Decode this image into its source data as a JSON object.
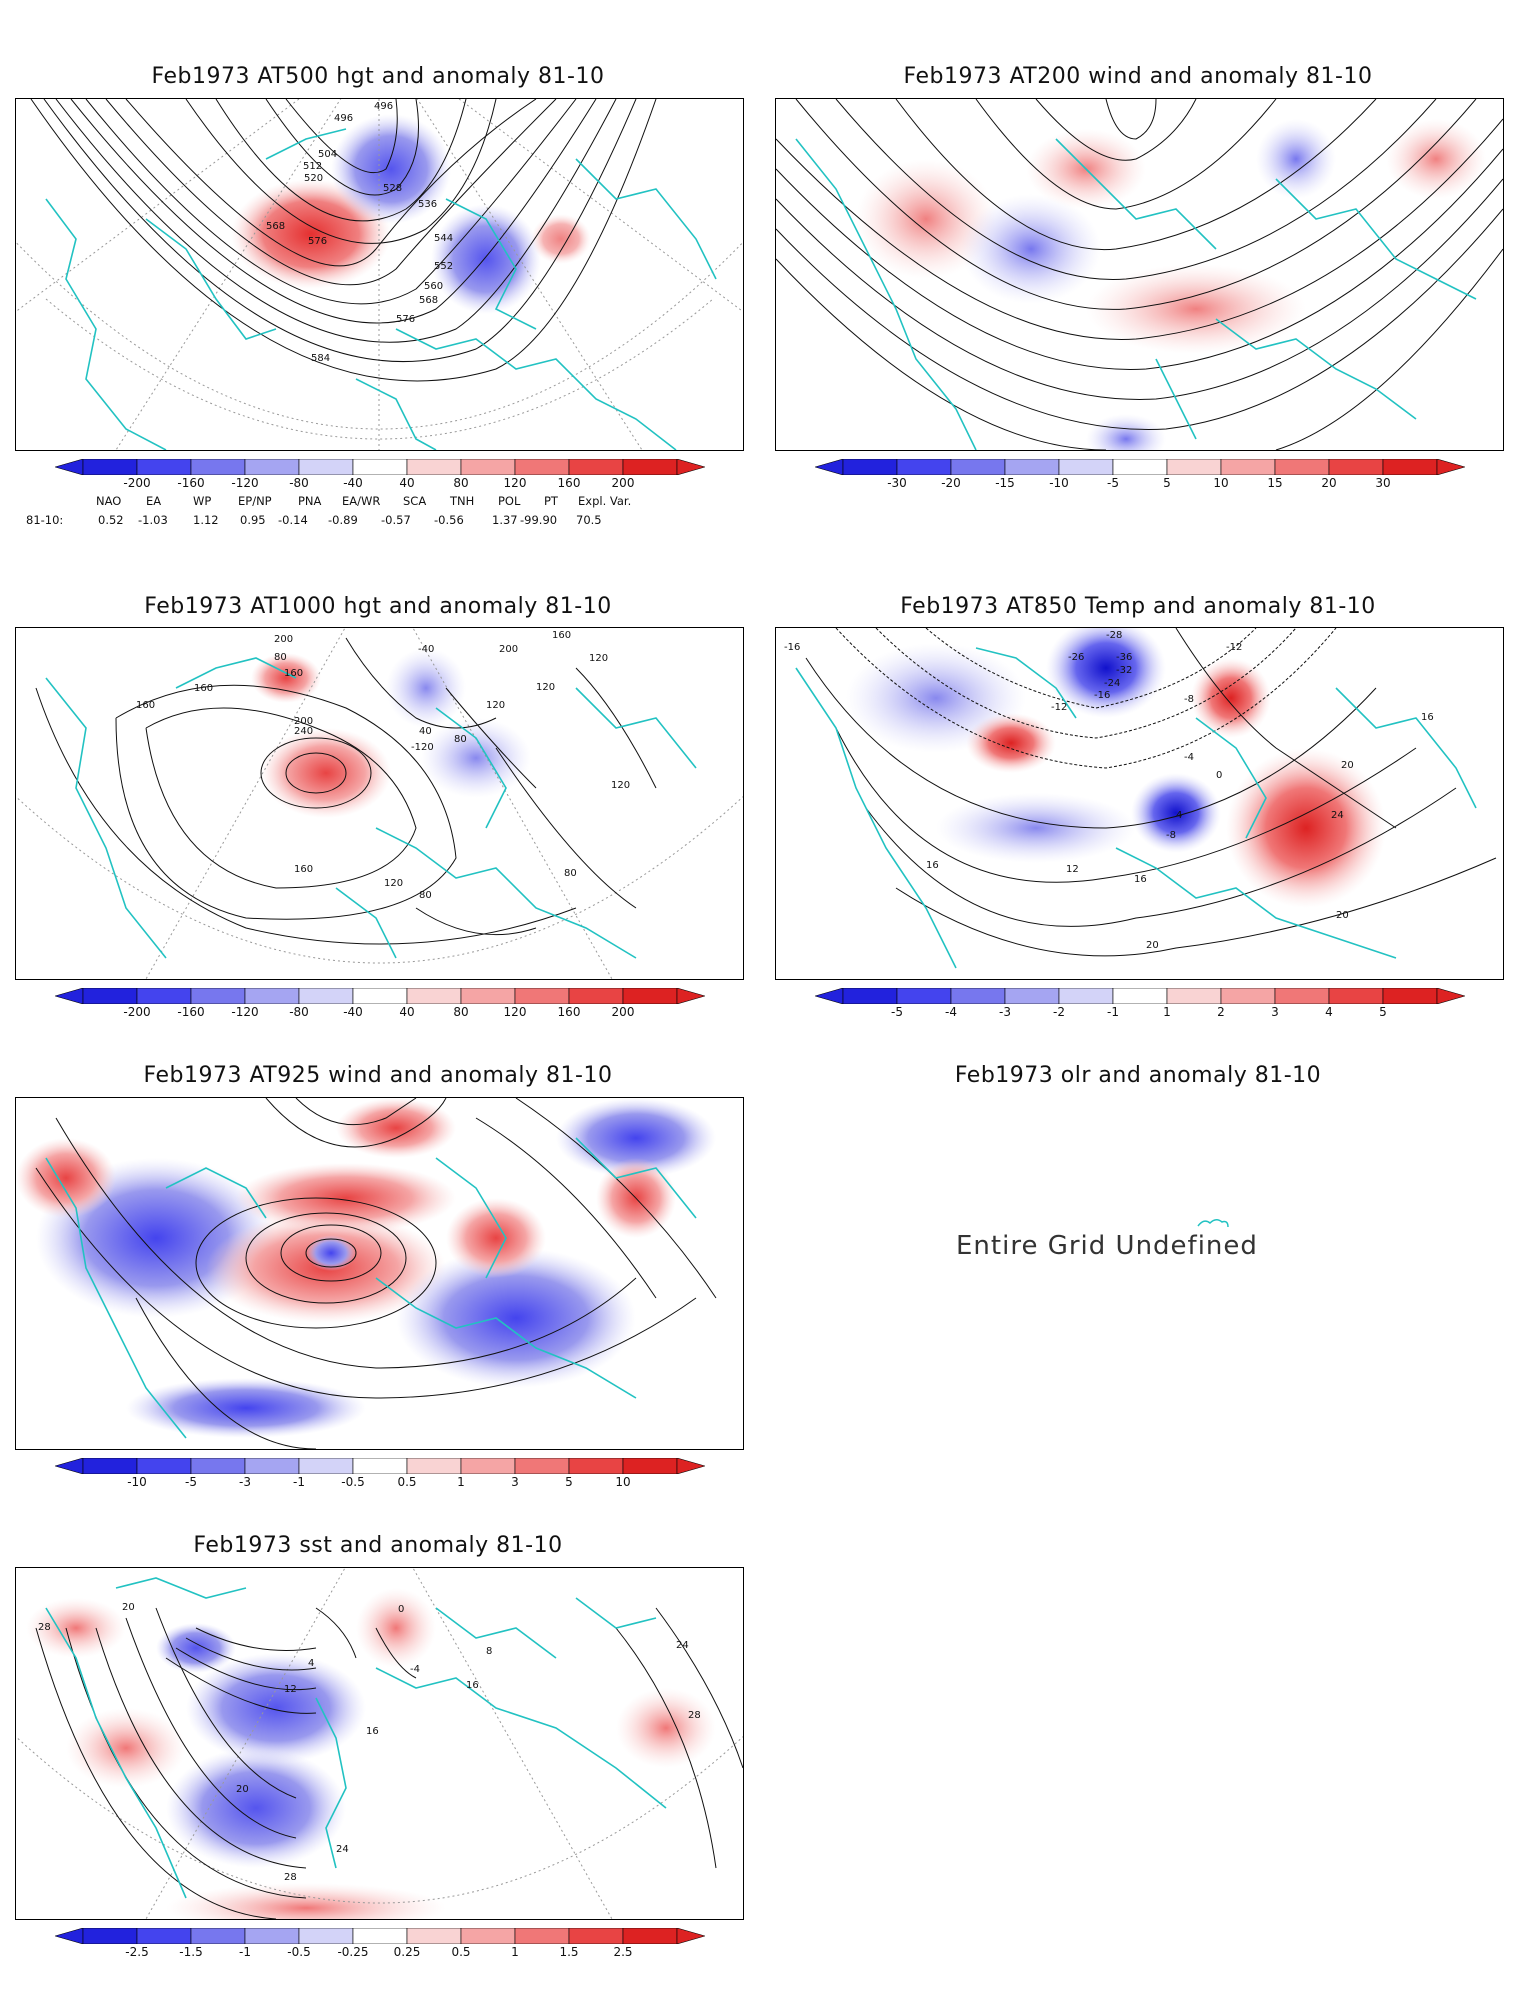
{
  "panels": {
    "p500": {
      "title": "Feb1973 AT500 hgt and anomaly 81-10",
      "contour_labels": [
        "496",
        "496",
        "504",
        "512",
        "520",
        "528",
        "536",
        "544",
        "552",
        "560",
        "568",
        "568",
        "576",
        "576",
        "584"
      ]
    },
    "p200": {
      "title": "Feb1973 AT200 wind and anomaly 81-10"
    },
    "p1000": {
      "title": "Feb1973 AT1000 hgt and anomaly 81-10",
      "contour_labels": [
        "200",
        "80",
        "160",
        "-40",
        "200",
        "160",
        "120",
        "160",
        "160",
        "120",
        "200",
        "240",
        "40",
        "-120",
        "80",
        "160",
        "120",
        "120",
        "80",
        "80",
        "120"
      ]
    },
    "p850": {
      "title": "Feb1973 AT850 Temp and anomaly 81-10",
      "contour_labels": [
        "-16",
        "-28",
        "-26",
        "-36",
        "-32",
        "-24",
        "-16",
        "-12",
        "-12",
        "-8",
        "-4",
        "0",
        "4",
        "-8",
        "16",
        "20",
        "24",
        "16",
        "12",
        "16",
        "20",
        "20"
      ]
    },
    "p925": {
      "title": "Feb1973 AT925 wind and anomaly 81-10"
    },
    "polr": {
      "title": "Feb1973 olr and anomaly 81-10",
      "message": "Entire Grid Undefined"
    },
    "psst": {
      "title": "Feb1973 sst and anomaly 81-10",
      "contour_labels": [
        "28",
        "20",
        "0",
        "4",
        "12",
        "16",
        "20",
        "24",
        "28",
        "-4",
        "8",
        "16",
        "24",
        "28"
      ]
    }
  },
  "colorbars": {
    "hgt500": [
      "-200",
      "-160",
      "-120",
      "-80",
      "-40",
      "40",
      "80",
      "120",
      "160",
      "200"
    ],
    "wind200": [
      "-30",
      "-20",
      "-15",
      "-10",
      "-5",
      "5",
      "10",
      "15",
      "20",
      "30"
    ],
    "hgt1000": [
      "-200",
      "-160",
      "-120",
      "-80",
      "-40",
      "40",
      "80",
      "120",
      "160",
      "200"
    ],
    "temp850": [
      "-5",
      "-4",
      "-3",
      "-2",
      "-1",
      "1",
      "2",
      "3",
      "4",
      "5"
    ],
    "wind925": [
      "-10",
      "-5",
      "-3",
      "-1",
      "-0.5",
      "0.5",
      "1",
      "3",
      "5",
      "10"
    ],
    "sst": [
      "-2.5",
      "-1.5",
      "-1",
      "-0.5",
      "-0.25",
      "0.25",
      "0.5",
      "1",
      "1.5",
      "2.5"
    ],
    "colors": [
      "#2222dd",
      "#4444ee",
      "#7777ee",
      "#a5a5f2",
      "#d3d3f8",
      "#ffffff",
      "#f9d3d3",
      "#f5a5a5",
      "#f07777",
      "#e84444",
      "#dd2222"
    ]
  },
  "teleconnections": {
    "headers": [
      "NAO",
      "EA",
      "WP",
      "EP/NP",
      "PNA",
      "EA/WR",
      "SCA",
      "TNH",
      "POL",
      "PT",
      "Expl. Var."
    ],
    "row_label": "81-10:",
    "values": [
      "0.52",
      "-1.03",
      "1.12",
      "0.95",
      "-0.14",
      "-0.89",
      "-0.57",
      "-0.56",
      "1.37",
      "-99.90",
      "70.5"
    ]
  },
  "style": {
    "coast_color": "#22c2c2",
    "contour_color": "#111111",
    "grid_color": "#999999"
  }
}
